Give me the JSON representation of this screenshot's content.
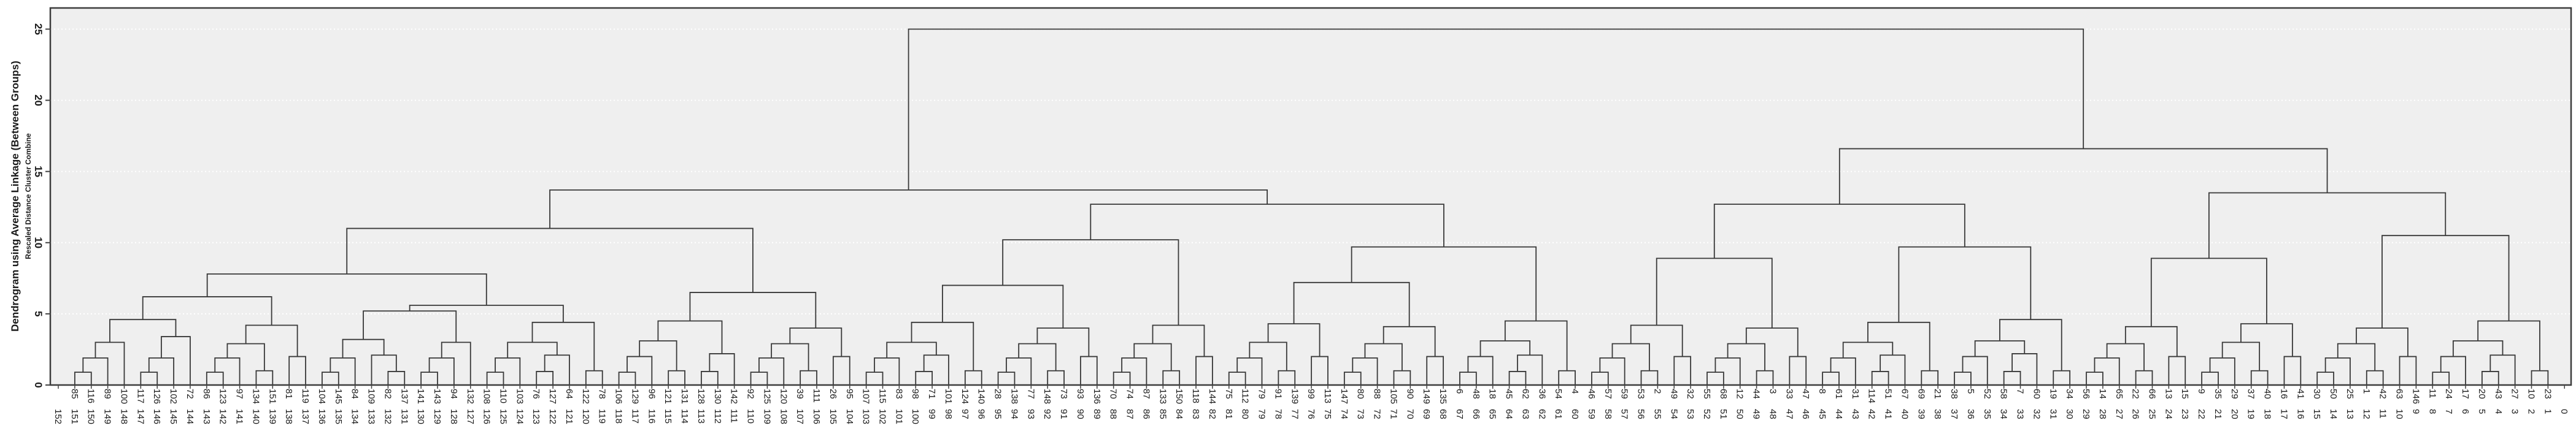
{
  "title": "Dendrogram using Average Linkage (Between Groups)",
  "subtitle": "Rescaled Distance Cluster Combine",
  "colors": {
    "plot_bg": "#efefef",
    "page_bg": "#ffffff",
    "link_line": "#383838",
    "grid_line": "#ffffff",
    "border": "#3c3c3c",
    "tick": "#444444",
    "text": "#1a1a1a"
  },
  "chart_data": {
    "type": "dendrogram",
    "orientation": "leaves-bottom",
    "title": "Dendrogram using Average Linkage (Between Groups)",
    "subtitle": "Rescaled Distance Cluster Combine",
    "distance_axis": {
      "ticks": [
        0,
        5,
        10,
        15,
        20,
        25
      ],
      "ylim": [
        0,
        26
      ],
      "grid": "dotted"
    },
    "count_axis_ticks": [
      152,
      151,
      150,
      149,
      148,
      147,
      146,
      145,
      144,
      143,
      142,
      141,
      140,
      139,
      138,
      137,
      136,
      135,
      134,
      133,
      132,
      131,
      130,
      129,
      128,
      127,
      126,
      125,
      124,
      123,
      122,
      121,
      120,
      119,
      118,
      117,
      116,
      115,
      114,
      113,
      112,
      111,
      110,
      109,
      108,
      107,
      106,
      105,
      104,
      103,
      102,
      101,
      100,
      99,
      98,
      97,
      96,
      95,
      94,
      93,
      92,
      91,
      90,
      89,
      88,
      87,
      86,
      85,
      84,
      83,
      82,
      81,
      80,
      79,
      78,
      77,
      76,
      75,
      74,
      73,
      72,
      71,
      70,
      69,
      68,
      67,
      66,
      65,
      64,
      63,
      62,
      61,
      60,
      59,
      58,
      57,
      56,
      55,
      54,
      53,
      52,
      51,
      50,
      49,
      48,
      47,
      46,
      45,
      44,
      43,
      42,
      41,
      40,
      39,
      38,
      37,
      36,
      35,
      34,
      33,
      32,
      31,
      30,
      29,
      28,
      27,
      26,
      25,
      24,
      23,
      22,
      21,
      20,
      19,
      18,
      17,
      16,
      15,
      14,
      13,
      12,
      11,
      10,
      9,
      8,
      7,
      6,
      5,
      4,
      3,
      2,
      1,
      0
    ],
    "leaf_case_labels": [
      "85",
      "116",
      "89",
      "100",
      "117",
      "126",
      "102",
      "72",
      "86",
      "123",
      "97",
      "134",
      "151",
      "81",
      "119",
      "104",
      "145",
      "84",
      "109",
      "82",
      "137",
      "141",
      "143",
      "94",
      "132",
      "108",
      "110",
      "103",
      "76",
      "127",
      "64",
      "122",
      "78",
      "106",
      "129",
      "96",
      "121",
      "131",
      "128",
      "130",
      "142",
      "92",
      "125",
      "120",
      "39",
      "111",
      "26",
      "95",
      "107",
      "115",
      "83",
      "98",
      "71",
      "101",
      "124",
      "140",
      "28",
      "138",
      "77",
      "148",
      "73",
      "93",
      "136",
      "70",
      "74",
      "87",
      "133",
      "150",
      "118",
      "144",
      "75",
      "112",
      "79",
      "91",
      "139",
      "99",
      "113",
      "147",
      "80",
      "88",
      "105",
      "90",
      "149",
      "135",
      "6",
      "48",
      "18",
      "45",
      "62",
      "36",
      "54",
      "4",
      "46",
      "57",
      "59",
      "53",
      "2",
      "49",
      "32",
      "55",
      "68",
      "12",
      "44",
      "3",
      "33",
      "47",
      "8",
      "61",
      "31",
      "114",
      "51",
      "67",
      "69",
      "21",
      "38",
      "5",
      "52",
      "58",
      "7",
      "60",
      "19",
      "34",
      "56",
      "14",
      "65",
      "22",
      "66",
      "13",
      "15",
      "9",
      "35",
      "29",
      "37",
      "40",
      "16",
      "41",
      "30",
      "50",
      "25",
      "1",
      "42",
      "63",
      "146",
      "11",
      "24",
      "17",
      "20",
      "43",
      "27",
      "10",
      "23"
    ],
    "linkage_tree": [
      25.0,
      [
        13.7,
        [
          11.0,
          [
            7.8,
            [
              6.2,
              [
                4.6,
                [
                  3.0,
                  [
                    1.9,
                    [
                      0.9,
                      "85",
                      "116"
                    ],
                    "89"
                  ],
                  "100"
                ],
                [
                  3.4,
                  [
                    1.9,
                    [
                      0.9,
                      "117",
                      "126"
                    ],
                    "102"
                  ],
                  "72"
                ]
              ],
              [
                4.2,
                [
                  2.9,
                  [
                    1.9,
                    [
                      0.9,
                      "86",
                      "123"
                    ],
                    "97"
                  ],
                  [
                    1.0,
                    "134",
                    "151"
                  ]
                ],
                [
                  2.0,
                  "81",
                  "119"
                ]
              ]
            ],
            [
              5.6,
              [
                5.2,
                [
                  3.2,
                  [
                    1.9,
                    [
                      0.9,
                      "104",
                      "145"
                    ],
                    "84"
                  ],
                  [
                    2.1,
                    "109",
                    [
                      0.95,
                      "82",
                      "137"
                    ]
                  ]
                ],
                [
                  3.0,
                  [
                    1.9,
                    [
                      0.9,
                      "141",
                      "143"
                    ],
                    "94"
                  ],
                  "132"
                ]
              ],
              [
                4.4,
                [
                  3.0,
                  [
                    1.9,
                    [
                      0.9,
                      "108",
                      "110"
                    ],
                    "103"
                  ],
                  [
                    2.1,
                    [
                      0.95,
                      "76",
                      "127"
                    ],
                    "64"
                  ]
                ],
                [
                  1.0,
                  "122",
                  "78"
                ]
              ]
            ]
          ],
          [
            6.5,
            [
              4.5,
              [
                3.1,
                [
                  2.0,
                  [
                    0.9,
                    "106",
                    "129"
                  ],
                  "96"
                ],
                [
                  1.0,
                  "121",
                  "131"
                ]
              ],
              [
                2.2,
                [
                  0.95,
                  "128",
                  "130"
                ],
                "142"
              ]
            ],
            [
              4.0,
              [
                2.9,
                [
                  1.9,
                  [
                    0.9,
                    "92",
                    "125"
                  ],
                  "120"
                ],
                [
                  1.0,
                  "39",
                  "111"
                ]
              ],
              [
                2.0,
                "26",
                "95"
              ]
            ]
          ]
        ],
        [
          12.7,
          [
            10.2,
            [
              7.0,
              [
                4.4,
                [
                  3.0,
                  [
                    1.9,
                    [
                      0.9,
                      "107",
                      "115"
                    ],
                    "83"
                  ],
                  [
                    2.1,
                    [
                      0.95,
                      "98",
                      "71"
                    ],
                    "101"
                  ]
                ],
                [
                  1.0,
                  "124",
                  "140"
                ]
              ],
              [
                4.0,
                [
                  2.9,
                  [
                    1.9,
                    [
                      0.9,
                      "28",
                      "138"
                    ],
                    "77"
                  ],
                  [
                    1.0,
                    "148",
                    "73"
                  ]
                ],
                [
                  2.0,
                  "93",
                  "136"
                ]
              ]
            ],
            [
              4.2,
              [
                2.9,
                [
                  1.9,
                  [
                    0.9,
                    "70",
                    "74"
                  ],
                  "87"
                ],
                [
                  1.0,
                  "133",
                  "150"
                ]
              ],
              [
                2.0,
                "118",
                "144"
              ]
            ]
          ],
          [
            9.7,
            [
              7.2,
              [
                4.3,
                [
                  3.0,
                  [
                    1.9,
                    [
                      0.9,
                      "75",
                      "112"
                    ],
                    "79"
                  ],
                  [
                    1.0,
                    "91",
                    "139"
                  ]
                ],
                [
                  2.0,
                  "99",
                  "113"
                ]
              ],
              [
                4.1,
                [
                  2.9,
                  [
                    1.9,
                    [
                      0.9,
                      "147",
                      "80"
                    ],
                    "88"
                  ],
                  [
                    1.0,
                    "105",
                    "90"
                  ]
                ],
                [
                  2.0,
                  "149",
                  "135"
                ]
              ]
            ],
            [
              4.5,
              [
                3.1,
                [
                  2.0,
                  [
                    0.9,
                    "6",
                    "48"
                  ],
                  "18"
                ],
                [
                  2.1,
                  [
                    0.95,
                    "45",
                    "62"
                  ],
                  "36"
                ]
              ],
              [
                1.0,
                "54",
                "4"
              ]
            ]
          ]
        ]
      ],
      [
        16.6,
        [
          12.7,
          [
            8.9,
            [
              4.2,
              [
                2.9,
                [
                  1.9,
                  [
                    0.9,
                    "46",
                    "57"
                  ],
                  "59"
                ],
                [
                  1.0,
                  "53",
                  "2"
                ]
              ],
              [
                2.0,
                "49",
                "32"
              ]
            ],
            [
              4.0,
              [
                2.9,
                [
                  1.9,
                  [
                    0.9,
                    "55",
                    "68"
                  ],
                  "12"
                ],
                [
                  1.0,
                  "44",
                  "3"
                ]
              ],
              [
                2.0,
                "33",
                "47"
              ]
            ]
          ],
          [
            9.7,
            [
              4.4,
              [
                3.0,
                [
                  1.9,
                  [
                    0.9,
                    "8",
                    "61"
                  ],
                  "31"
                ],
                [
                  2.1,
                  [
                    0.95,
                    "114",
                    "51"
                  ],
                  "67"
                ]
              ],
              [
                1.0,
                "69",
                "21"
              ]
            ],
            [
              4.6,
              [
                3.1,
                [
                  2.0,
                  [
                    0.9,
                    "38",
                    "5"
                  ],
                  "52"
                ],
                [
                  2.2,
                  [
                    0.95,
                    "58",
                    "7"
                  ],
                  "60"
                ]
              ],
              [
                1.0,
                "19",
                "34"
              ]
            ]
          ]
        ],
        [
          13.5,
          [
            8.9,
            [
              4.1,
              [
                2.9,
                [
                  1.9,
                  [
                    0.9,
                    "56",
                    "14"
                  ],
                  "65"
                ],
                [
                  1.0,
                  "22",
                  "66"
                ]
              ],
              [
                2.0,
                "13",
                "15"
              ]
            ],
            [
              4.3,
              [
                3.0,
                [
                  1.9,
                  [
                    0.9,
                    "9",
                    "35"
                  ],
                  "29"
                ],
                [
                  1.0,
                  "37",
                  "40"
                ]
              ],
              [
                2.0,
                "16",
                "41"
              ]
            ]
          ],
          [
            10.5,
            [
              4.0,
              [
                2.9,
                [
                  1.9,
                  [
                    0.9,
                    "30",
                    "50"
                  ],
                  "25"
                ],
                [
                  1.0,
                  "1",
                  "42"
                ]
              ],
              [
                2.0,
                "63",
                "146"
              ]
            ],
            [
              4.5,
              [
                3.1,
                [
                  2.0,
                  [
                    0.9,
                    "11",
                    "24"
                  ],
                  "17"
                ],
                [
                  2.1,
                  [
                    0.95,
                    "20",
                    "43"
                  ],
                  "27"
                ]
              ],
              [
                1.0,
                "10",
                "23"
              ]
            ]
          ]
        ]
      ]
    ]
  }
}
